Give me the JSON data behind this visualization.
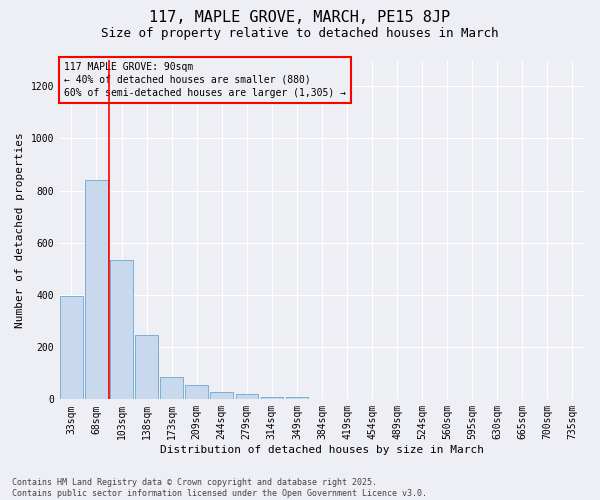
{
  "title": "117, MAPLE GROVE, MARCH, PE15 8JP",
  "subtitle": "Size of property relative to detached houses in March",
  "xlabel": "Distribution of detached houses by size in March",
  "ylabel": "Number of detached properties",
  "categories": [
    "33sqm",
    "68sqm",
    "103sqm",
    "138sqm",
    "173sqm",
    "209sqm",
    "244sqm",
    "279sqm",
    "314sqm",
    "349sqm",
    "384sqm",
    "419sqm",
    "454sqm",
    "489sqm",
    "524sqm",
    "560sqm",
    "595sqm",
    "630sqm",
    "665sqm",
    "700sqm",
    "735sqm"
  ],
  "values": [
    395,
    840,
    535,
    245,
    85,
    55,
    30,
    20,
    10,
    10,
    0,
    0,
    0,
    0,
    0,
    0,
    0,
    0,
    0,
    0,
    0
  ],
  "bar_color": "#c8d9ee",
  "bar_edge_color": "#7aafd4",
  "vline_color": "red",
  "vline_x": 1.5,
  "ylim": [
    0,
    1300
  ],
  "yticks": [
    0,
    200,
    400,
    600,
    800,
    1000,
    1200
  ],
  "annotation_title": "117 MAPLE GROVE: 90sqm",
  "annotation_line2": "← 40% of detached houses are smaller (880)",
  "annotation_line3": "60% of semi-detached houses are larger (1,305) →",
  "annotation_box_color": "red",
  "footnote1": "Contains HM Land Registry data © Crown copyright and database right 2025.",
  "footnote2": "Contains public sector information licensed under the Open Government Licence v3.0.",
  "background_color": "#eeeef5",
  "grid_color": "#ffffff",
  "title_fontsize": 11,
  "subtitle_fontsize": 9,
  "axis_label_fontsize": 8,
  "tick_fontsize": 7,
  "annotation_fontsize": 7,
  "footnote_fontsize": 6
}
